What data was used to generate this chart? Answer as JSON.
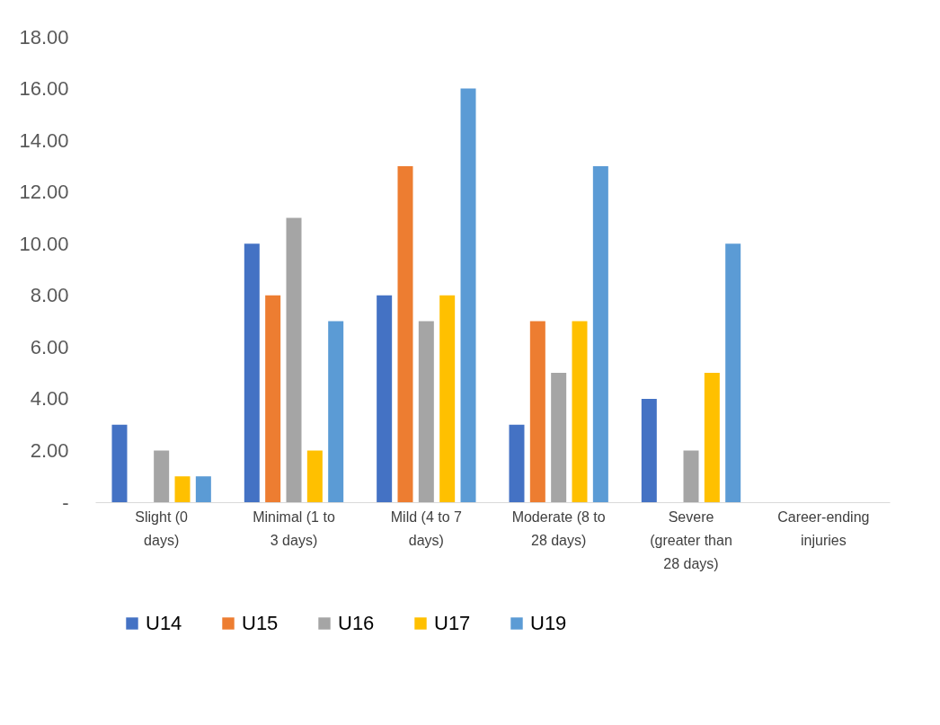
{
  "chart_data": {
    "type": "bar",
    "categories": [
      "Slight (0 days)",
      "Minimal (1 to 3 days)",
      "Mild (4 to 7 days)",
      "Moderate (8 to 28 days)",
      "Severe (greater than 28 days)",
      "Career-ending injuries"
    ],
    "series": [
      {
        "name": "U14",
        "color": "#4472c4",
        "values": [
          3,
          10,
          8,
          3,
          4,
          0
        ]
      },
      {
        "name": "U15",
        "color": "#ed7d31",
        "values": [
          0,
          8,
          13,
          7,
          0,
          0
        ]
      },
      {
        "name": "U16",
        "color": "#a5a5a5",
        "values": [
          2,
          11,
          7,
          5,
          2,
          0
        ]
      },
      {
        "name": "U17",
        "color": "#ffc000",
        "values": [
          1,
          2,
          8,
          7,
          5,
          0
        ]
      },
      {
        "name": "U19",
        "color": "#5b9bd5",
        "values": [
          1,
          7,
          16,
          13,
          10,
          0
        ]
      }
    ],
    "ylim": [
      0,
      18
    ],
    "yticks": [
      {
        "value": 0,
        "label": "-"
      },
      {
        "value": 2,
        "label": "2.00"
      },
      {
        "value": 4,
        "label": "4.00"
      },
      {
        "value": 6,
        "label": "6.00"
      },
      {
        "value": 8,
        "label": "8.00"
      },
      {
        "value": 10,
        "label": "10.00"
      },
      {
        "value": 12,
        "label": "12.00"
      },
      {
        "value": 14,
        "label": "14.00"
      },
      {
        "value": 16,
        "label": "16.00"
      },
      {
        "value": 18,
        "label": "18.00"
      }
    ],
    "grid": false,
    "legend": "bottom"
  }
}
